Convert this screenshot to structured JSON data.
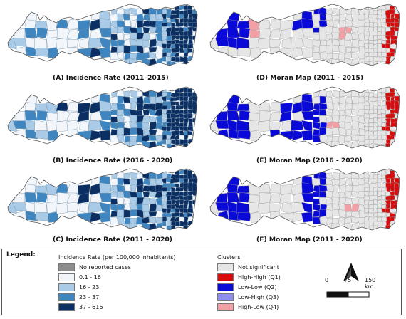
{
  "panels": [
    {
      "id": "A",
      "caption": "(A) Incidence Rate (2011–2015)",
      "kind": "incidence"
    },
    {
      "id": "D",
      "caption": "(D) Moran Map (2011 - 2015)",
      "kind": "moran"
    },
    {
      "id": "B",
      "caption": "(B) Incidence Rate (2016 - 2020)",
      "kind": "incidence"
    },
    {
      "id": "E",
      "caption": "(E) Moran Map (2016 - 2020)",
      "kind": "moran"
    },
    {
      "id": "C",
      "caption": "(C) Incidence Rate (2011 - 2020)",
      "kind": "incidence"
    },
    {
      "id": "F",
      "caption": "(F) Moran Map (2011 - 2020)",
      "kind": "moran"
    }
  ],
  "legend": {
    "title": "Legend:",
    "incidence_header": "Incidence Rate (per 100,000 inhabitants)",
    "incidence_classes": [
      {
        "label": "No reported cases",
        "color": "#8c8c8c"
      },
      {
        "label": "0.1 - 16",
        "color": "#f2f6fb"
      },
      {
        "label": "16 - 23",
        "color": "#a9cbe7"
      },
      {
        "label": "23 - 37",
        "color": "#3f86c0"
      },
      {
        "label": "37 - 616",
        "color": "#0c2f63"
      }
    ],
    "clusters_header": "Clusters",
    "cluster_classes": [
      {
        "label": "Not significant",
        "color": "#e6e6e6"
      },
      {
        "label": "High-High (Q1)",
        "color": "#d90c0c"
      },
      {
        "label": "Low-Low (Q2)",
        "color": "#0a0ad8"
      },
      {
        "label": "Low-High (Q3)",
        "color": "#8f8ff2"
      },
      {
        "label": "High-Low (Q4)",
        "color": "#f2a0a6"
      }
    ]
  },
  "north_arrow": {
    "label": "N"
  },
  "scale_bar": {
    "labels": [
      "0",
      "75",
      "150 km"
    ]
  }
}
